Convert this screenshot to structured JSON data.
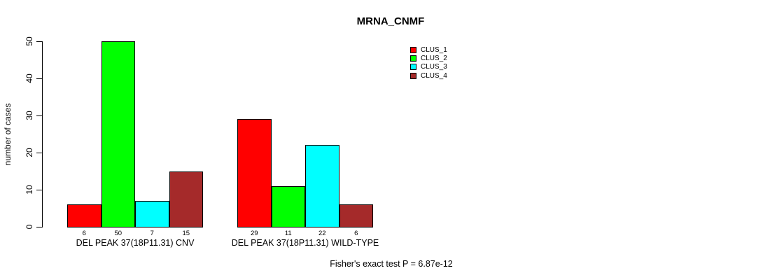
{
  "title": "MRNA_CNMF",
  "footnote": "Fisher's exact test P = 6.87e-12",
  "chart_data": {
    "type": "bar",
    "title": "MRNA_CNMF",
    "xlabel": "",
    "ylabel": "number of cases",
    "ylim": [
      0,
      50
    ],
    "yticks": [
      0,
      10,
      20,
      30,
      40,
      50
    ],
    "grid": false,
    "legend_position": "top-right",
    "bar_value_labels_shown": true,
    "categories": [
      "DEL PEAK 37(18P11.31) CNV",
      "DEL PEAK 37(18P11.31) WILD-TYPE"
    ],
    "series": [
      {
        "name": "CLUS_1",
        "color": "#FF0000",
        "values": [
          6,
          29
        ]
      },
      {
        "name": "CLUS_2",
        "color": "#00FF00",
        "values": [
          50,
          11
        ]
      },
      {
        "name": "CLUS_3",
        "color": "#00FFFF",
        "values": [
          7,
          22
        ]
      },
      {
        "name": "CLUS_4",
        "color": "#A52A2A",
        "values": [
          15,
          6
        ]
      }
    ],
    "annotation": "Fisher's exact test P = 6.87e-12"
  }
}
